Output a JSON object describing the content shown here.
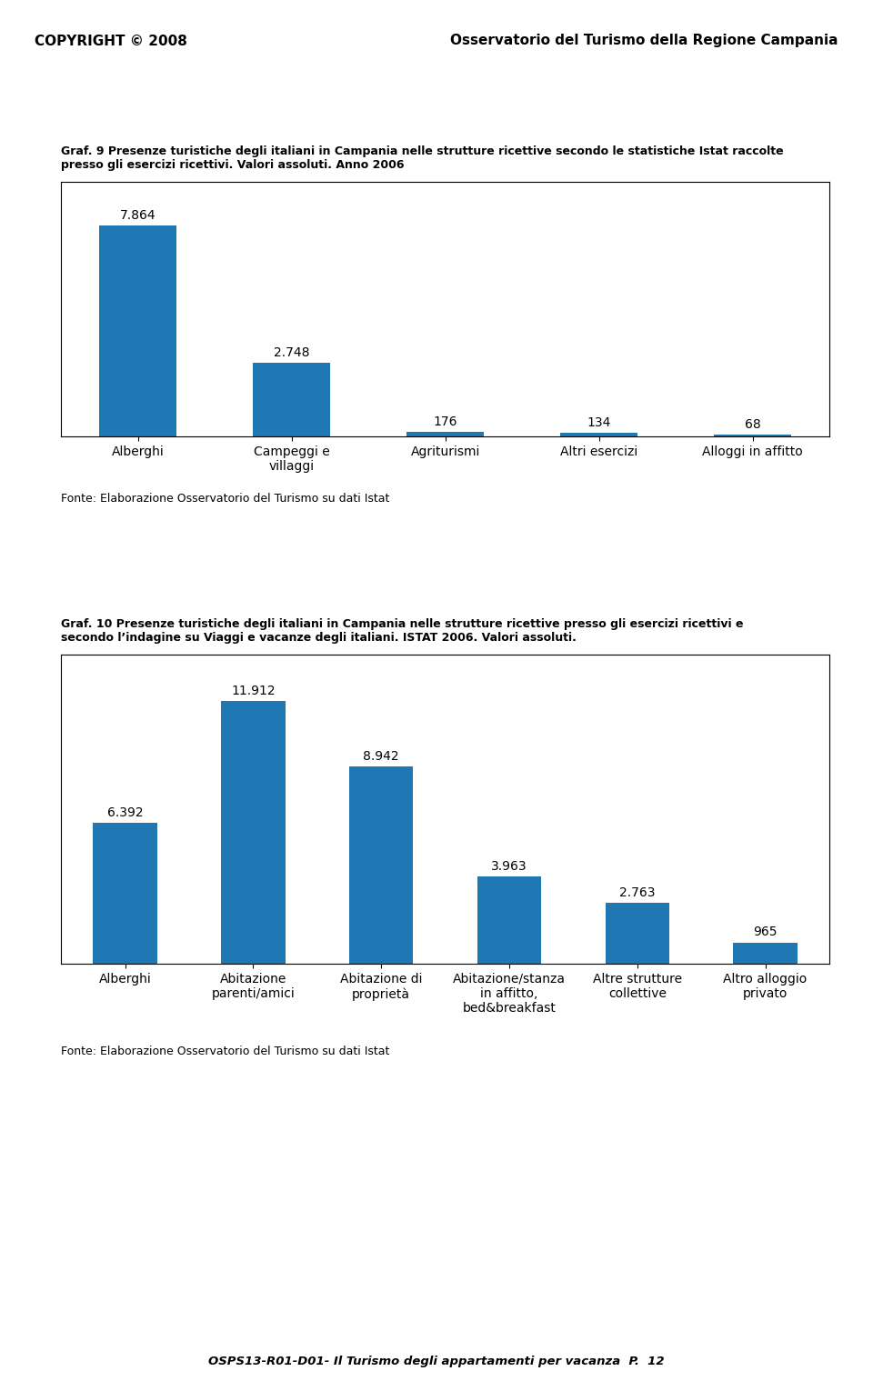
{
  "chart_data": [
    {
      "type": "bar",
      "title": "Graf. 9 Presenze turistiche degli italiani in Campania nelle strutture ricettive secondo le statistiche Istat raccolte\npresso gli esercizi ricettivi. Valori assoluti. Anno 2006",
      "categories": [
        "Alberghi",
        "Campeggi e\nvillaggi",
        "Agriturismi",
        "Altri esercizi",
        "Alloggi in affitto"
      ],
      "values": [
        7864,
        2748,
        176,
        134,
        68
      ],
      "value_labels": [
        "7.864",
        "2.748",
        "176",
        "134",
        "68"
      ],
      "data_labels": true,
      "ylim": [
        0,
        9500
      ],
      "tick_labels": "x",
      "grid": false,
      "annotations": [
        "Fonte: Elaborazione Osservatorio del Turismo su dati Istat"
      ]
    },
    {
      "type": "bar",
      "title": "Graf. 10 Presenze turistiche degli italiani in Campania nelle strutture ricettive presso gli esercizi ricettivi e\nsecondo l’indagine su Viaggi e vacanze degli italiani. ISTAT 2006. Valori assoluti.",
      "categories": [
        "Alberghi",
        "Abitazione\nparenti/amici",
        "Abitazione di\nproprietà",
        "Abitazione/stanza\nin affitto,\nbed&breakfast",
        "Altre strutture\ncollettive",
        "Altro alloggio\nprivato"
      ],
      "values": [
        6392,
        11912,
        8942,
        3963,
        2763,
        965
      ],
      "value_labels": [
        "6.392",
        "11.912",
        "8.942",
        "3.963",
        "2.763",
        "965"
      ],
      "data_labels": true,
      "ylim": [
        0,
        14000
      ],
      "tick_labels": "x",
      "grid": false,
      "annotations": [
        "Fonte: Elaborazione Osservatorio del Turismo su dati Istat"
      ]
    }
  ],
  "annotations": [
    "COPYRIGHT © 2008",
    "Osservatorio del Turismo della Regione Campania",
    "OSPS13-R01-D01- Il Turismo degli appartamenti per vacanza  P.  12"
  ]
}
